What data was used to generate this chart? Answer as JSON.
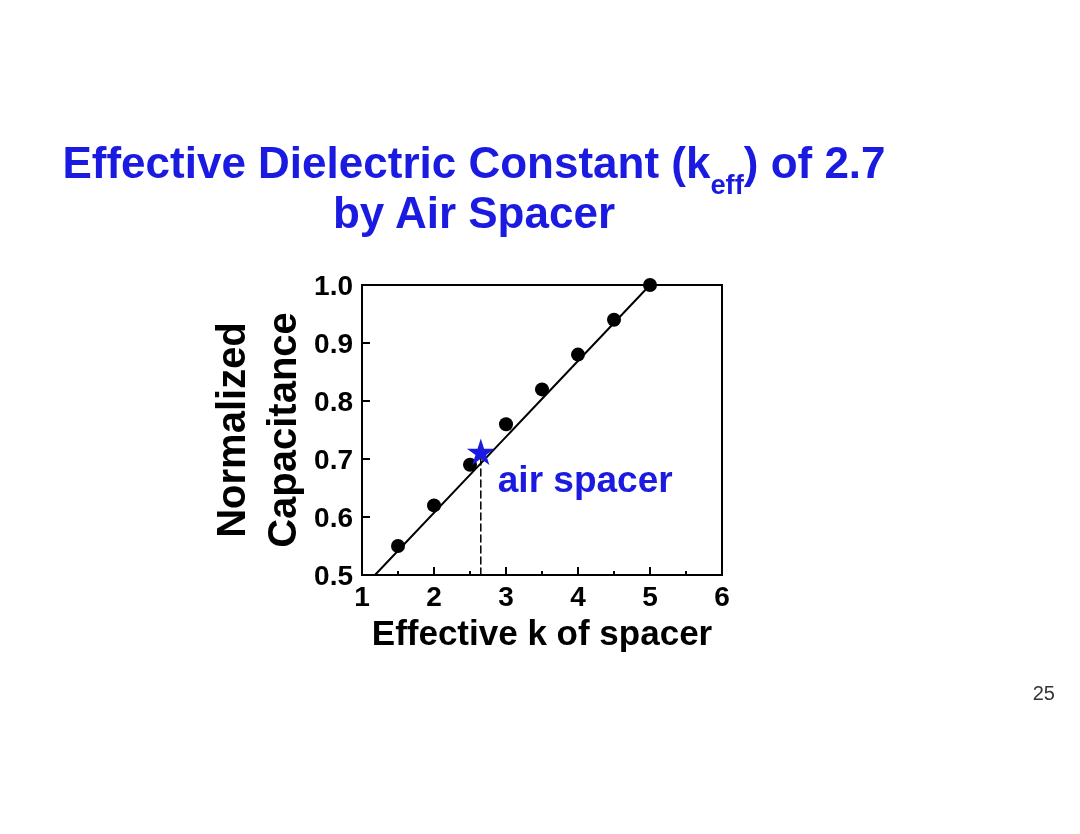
{
  "chart_data": {
    "type": "scatter",
    "title": "Effective Dielectric Constant (k$_{eff}$) of 2.7 by Air Spacer",
    "xlabel": "Effective k of spacer",
    "ylabel": "Normalized Capacitance",
    "xlim": [
      1,
      6
    ],
    "ylim": [
      0.5,
      1.0
    ],
    "xticks": [
      1,
      {
        "value": 1.5,
        "label": null
      },
      2,
      {
        "value": 2.5,
        "label": null
      },
      3,
      {
        "value": 3.5,
        "label": null
      },
      4,
      {
        "value": 4.5,
        "label": null
      },
      5,
      {
        "value": 5.5,
        "label": null
      },
      6
    ],
    "yticks": [
      0.5,
      0.6,
      0.7,
      0.8,
      0.9,
      {
        "value": 1,
        "label": "1.0"
      }
    ],
    "series": [
      {
        "type": "line",
        "x": [
          2.65,
          2.65
        ],
        "values": [
          0.5,
          0.71
        ],
        "color": "#000000",
        "line_style": "dashed",
        "marker": "none"
      },
      {
        "type": "line",
        "x": [
          1.18,
          5
        ],
        "values": [
          0.5,
          1.0
        ],
        "color": "#000000",
        "line_style": "solid",
        "marker": "none"
      },
      {
        "x": [
          1.5,
          2,
          2.5,
          3,
          3.5,
          4,
          4.5,
          5
        ],
        "values": [
          0.55,
          0.62,
          0.69,
          0.76,
          0.82,
          0.88,
          0.94,
          1.0
        ],
        "color": "#000000",
        "marker": "circle"
      },
      {
        "name": "air spacer",
        "x": [
          2.65
        ],
        "values": [
          0.71
        ],
        "color": "#1a1ae0",
        "marker": "star"
      }
    ],
    "annotations": [
      "25"
    ]
  }
}
